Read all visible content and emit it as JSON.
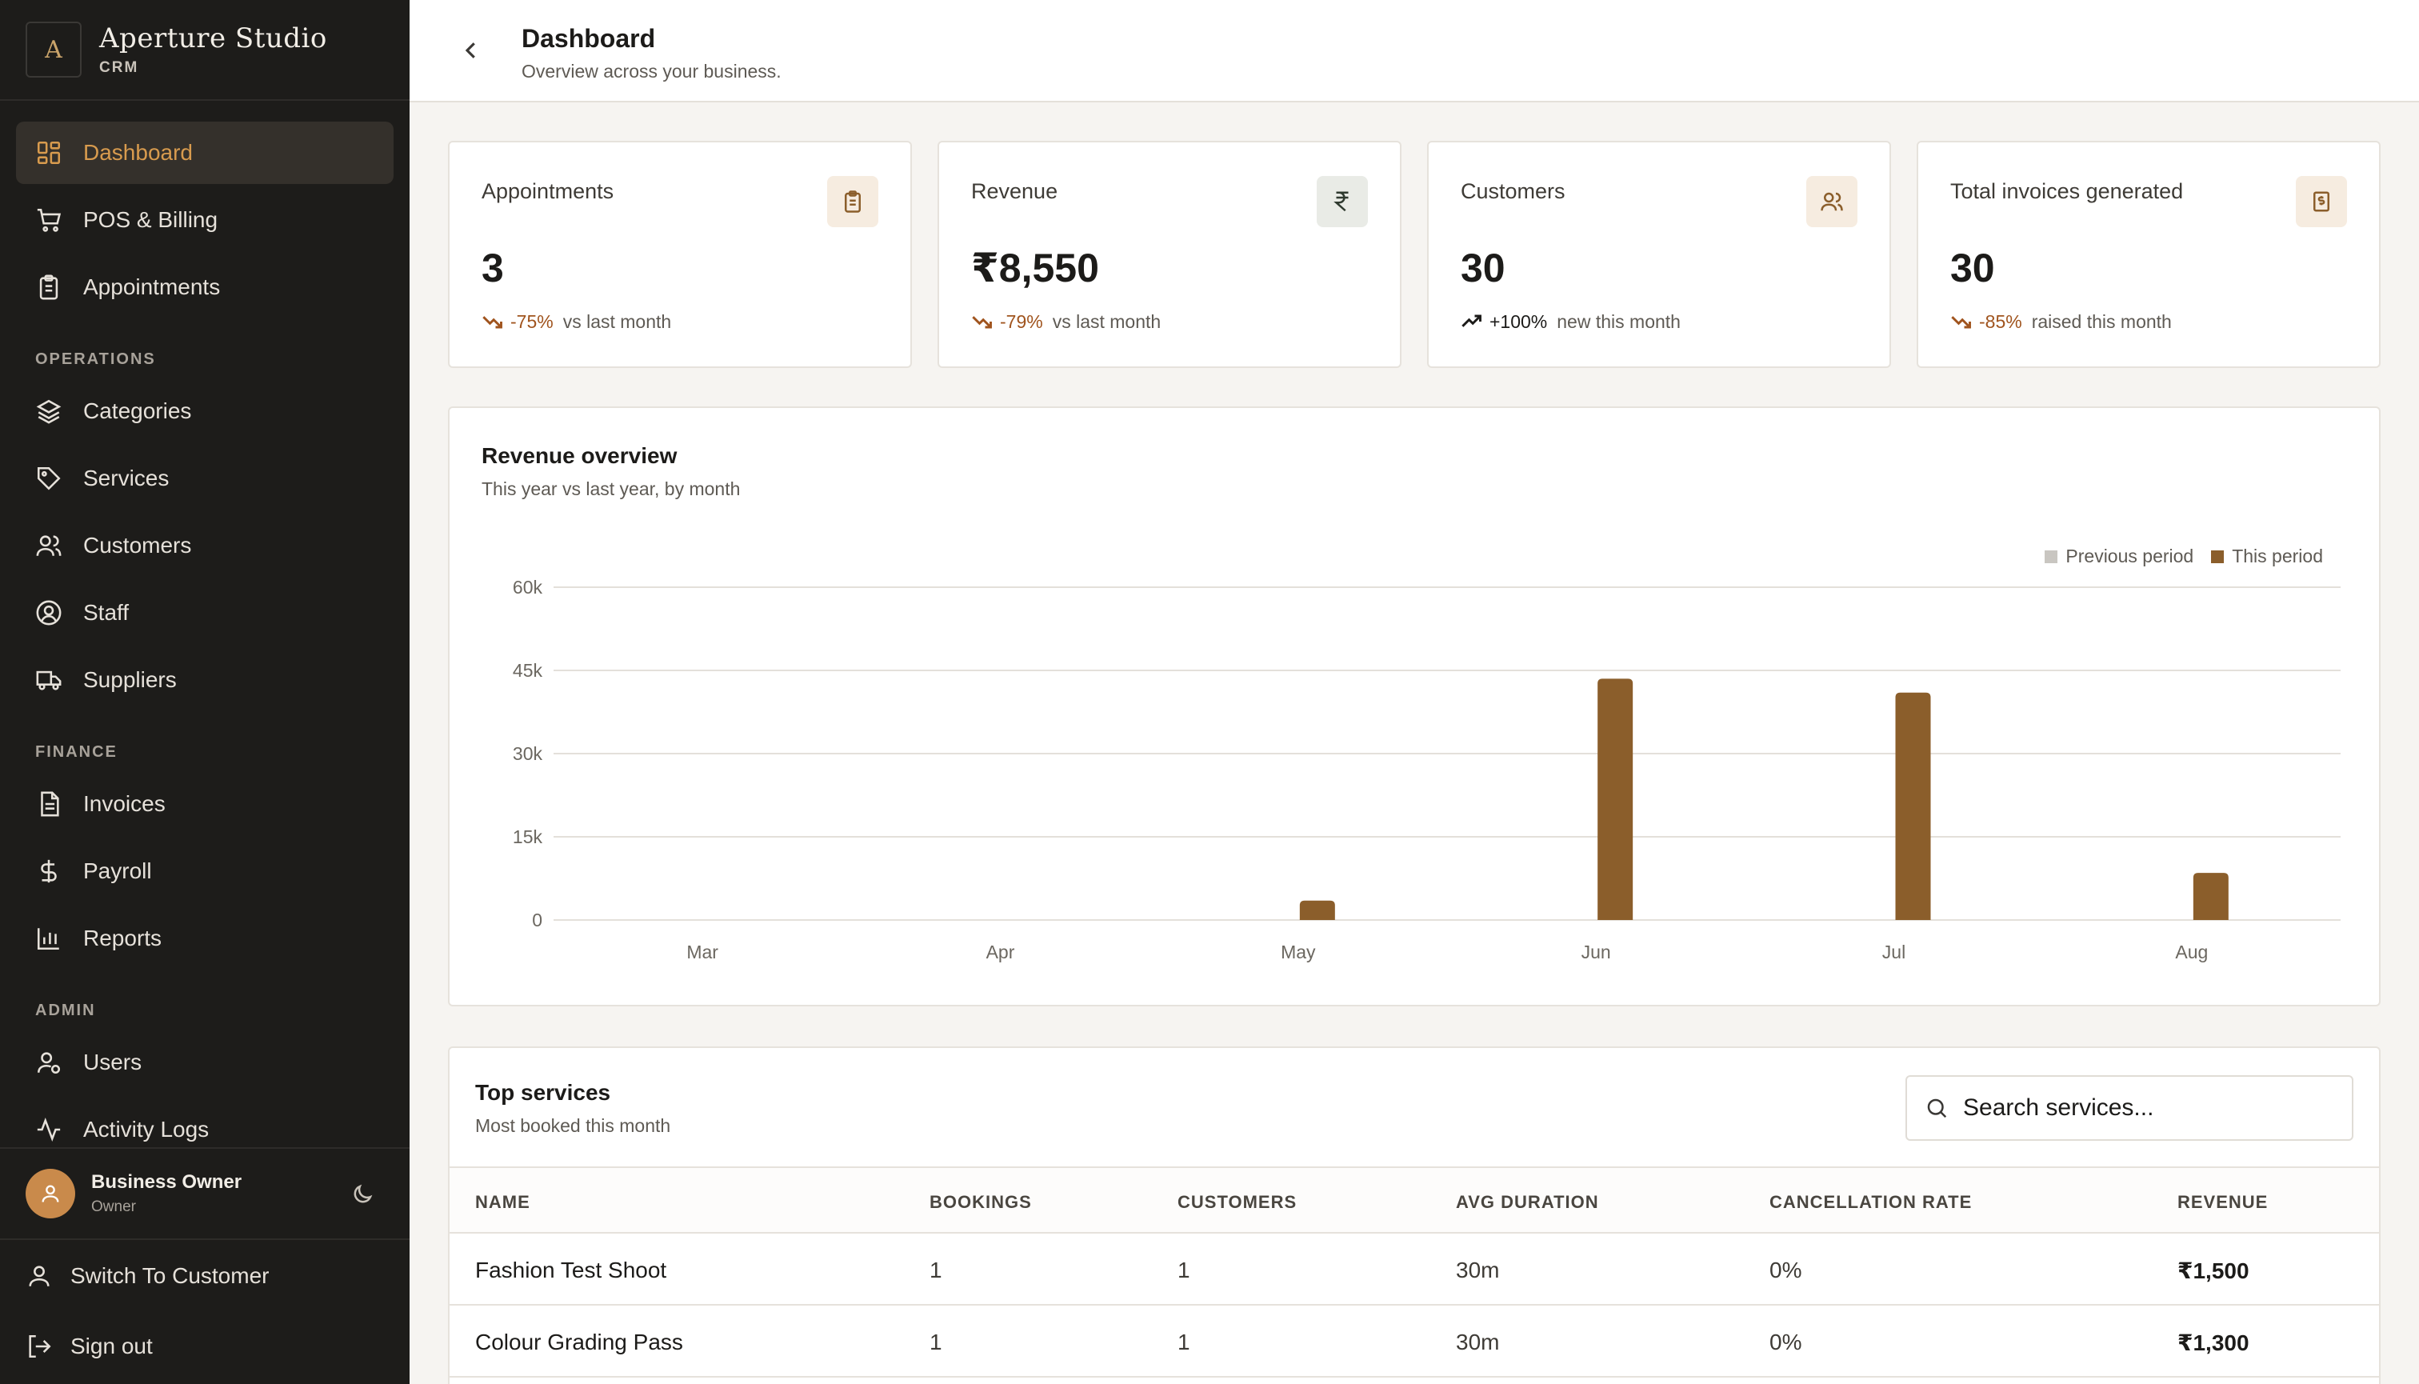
{
  "brand": {
    "logo_letter": "A",
    "name": "Aperture Studio",
    "sub": "CRM"
  },
  "nav": {
    "main": [
      {
        "label": "Dashboard",
        "icon": "grid-icon",
        "active": true
      },
      {
        "label": "POS & Billing",
        "icon": "cart-icon"
      },
      {
        "label": "Appointments",
        "icon": "clipboard-icon"
      }
    ],
    "operations_label": "OPERATIONS",
    "operations": [
      {
        "label": "Categories",
        "icon": "layers-icon"
      },
      {
        "label": "Services",
        "icon": "tag-icon"
      },
      {
        "label": "Customers",
        "icon": "users-icon"
      },
      {
        "label": "Staff",
        "icon": "user-circle-icon"
      },
      {
        "label": "Suppliers",
        "icon": "truck-icon"
      }
    ],
    "finance_label": "FINANCE",
    "finance": [
      {
        "label": "Invoices",
        "icon": "file-icon"
      },
      {
        "label": "Payroll",
        "icon": "dollar-icon"
      },
      {
        "label": "Reports",
        "icon": "bar-chart-icon"
      }
    ],
    "admin_label": "ADMIN",
    "admin": [
      {
        "label": "Users",
        "icon": "user-gear-icon"
      },
      {
        "label": "Activity Logs",
        "icon": "activity-icon"
      }
    ]
  },
  "user": {
    "name": "Business Owner",
    "role": "Owner"
  },
  "bottom": {
    "switch_label": "Switch To Customer",
    "signout_label": "Sign out"
  },
  "header": {
    "title": "Dashboard",
    "subtitle": "Overview across your business."
  },
  "stats": [
    {
      "title": "Appointments",
      "value": "3",
      "delta": "-75%",
      "delta_text": "vs last month",
      "trend": "down",
      "icon": "clipboard-icon"
    },
    {
      "title": "Revenue",
      "value": "₹8,550",
      "delta": "-79%",
      "delta_text": "vs last month",
      "trend": "down",
      "icon": "rupee-icon"
    },
    {
      "title": "Customers",
      "value": "30",
      "delta": "+100%",
      "delta_text": "new this month",
      "trend": "up",
      "icon": "users-icon"
    },
    {
      "title": "Total invoices generated",
      "value": "30",
      "delta": "-85%",
      "delta_text": "raised this month",
      "trend": "down",
      "icon": "invoice-icon"
    }
  ],
  "chart_card": {
    "title": "Revenue overview",
    "subtitle": "This year vs last year, by month"
  },
  "chart_data": {
    "type": "bar",
    "title": "Revenue overview",
    "categories": [
      "Mar",
      "Apr",
      "May",
      "Jun",
      "Jul",
      "Aug"
    ],
    "series": [
      {
        "name": "Previous period",
        "color": "#c9c6c1",
        "values": [
          0,
          0,
          0,
          0,
          0,
          0
        ]
      },
      {
        "name": "This period",
        "color": "#8b5e2b",
        "values": [
          0,
          0,
          3500,
          43500,
          41000,
          8500
        ]
      }
    ],
    "yticks": [
      "0",
      "15k",
      "30k",
      "45k",
      "60k"
    ],
    "ylim": [
      0,
      60000
    ],
    "grid": true,
    "legend": "top-right"
  },
  "table": {
    "title": "Top services",
    "subtitle": "Most booked this month",
    "search_placeholder": "Search services...",
    "columns": [
      "NAME",
      "BOOKINGS",
      "CUSTOMERS",
      "AVG DURATION",
      "CANCELLATION RATE",
      "REVENUE"
    ],
    "rows": [
      [
        "Fashion Test Shoot",
        "1",
        "1",
        "30m",
        "0%",
        "₹1,500"
      ],
      [
        "Colour Grading Pass",
        "1",
        "1",
        "30m",
        "0%",
        "₹1,300"
      ]
    ]
  },
  "colors": {
    "accent": "#d89b4e",
    "bar": "#8b5e2b",
    "sidebar": "#1d1c1a",
    "down": "#a0541e"
  }
}
